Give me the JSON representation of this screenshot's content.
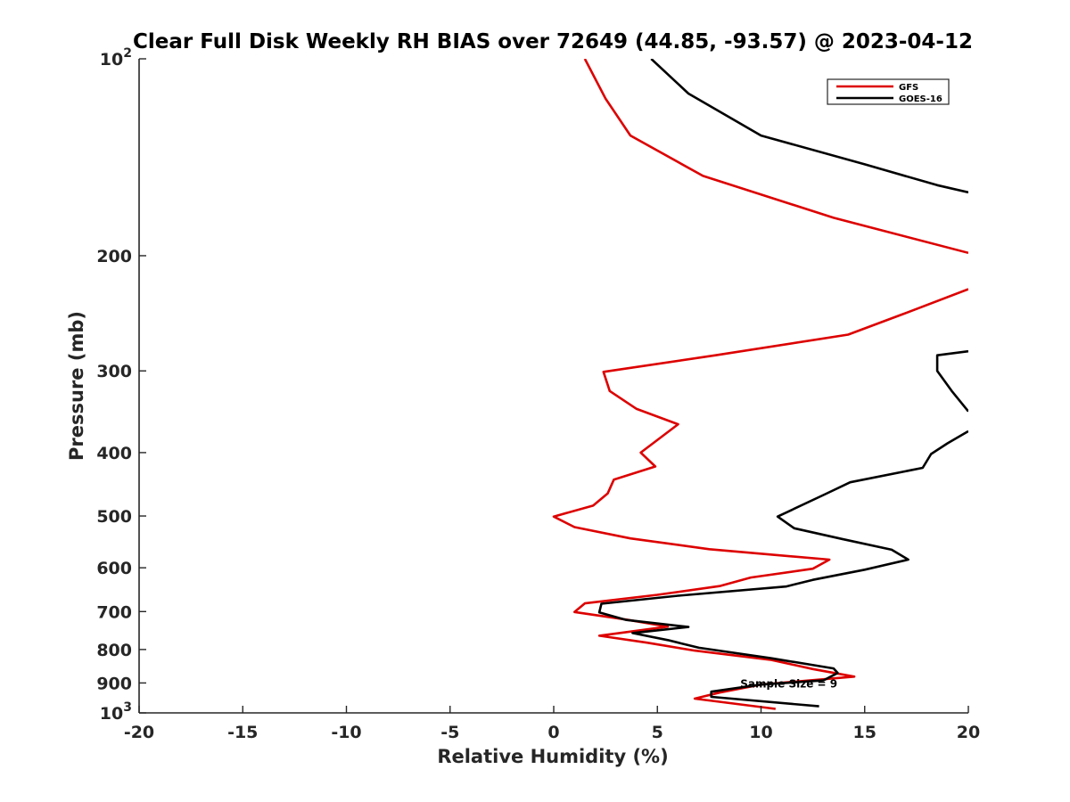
{
  "chart_data": {
    "type": "line",
    "title": "Clear Full Disk Weekly RH BIAS over 72649 (44.85, -93.57) @ 2023-04-12",
    "xlabel": "Relative Humidity (%)",
    "ylabel": "Pressure (mb)",
    "xlim": [
      -20,
      20
    ],
    "ylim": [
      100,
      1000
    ],
    "yscale": "log",
    "y_reversed": true,
    "grid": false,
    "legend_position": "top-right",
    "x_ticks": [
      "-20",
      "-15",
      "-10",
      "-5",
      "0",
      "5",
      "10",
      "15",
      "20"
    ],
    "y_ticks": [
      {
        "value": 100,
        "base": "10",
        "exp": "2"
      },
      {
        "value": 200,
        "label": "200"
      },
      {
        "value": 300,
        "label": "300"
      },
      {
        "value": 400,
        "label": "400"
      },
      {
        "value": 500,
        "label": "500"
      },
      {
        "value": 600,
        "label": "600"
      },
      {
        "value": 700,
        "label": "700"
      },
      {
        "value": 800,
        "label": "800"
      },
      {
        "value": 900,
        "label": "900"
      },
      {
        "value": 1000,
        "base": "10",
        "exp": "3"
      }
    ],
    "annotation": {
      "text": "Sample Size = 9",
      "x": 13.3,
      "y": 900
    },
    "series": [
      {
        "name": "GFS",
        "color": "#dd0000",
        "points": [
          [
            1.5,
            100
          ],
          [
            2.5,
            115
          ],
          [
            3.7,
            131
          ],
          [
            7.2,
            151
          ],
          [
            13.5,
            175
          ],
          [
            20.0,
            198
          ],
          null,
          [
            20.0,
            225
          ],
          [
            16.8,
            246
          ],
          [
            14.2,
            264
          ],
          [
            7.8,
            284
          ],
          [
            2.4,
            301
          ],
          [
            2.7,
            322
          ],
          [
            4.0,
            343
          ],
          [
            6.0,
            362
          ],
          [
            4.2,
            400
          ],
          [
            4.9,
            420
          ],
          [
            2.9,
            440
          ],
          [
            2.6,
            462
          ],
          [
            1.9,
            482
          ],
          [
            0.0,
            501
          ],
          [
            1.0,
            520
          ],
          [
            3.7,
            541
          ],
          [
            7.5,
            562
          ],
          [
            13.3,
            583
          ],
          [
            12.5,
            602
          ],
          [
            9.5,
            621
          ],
          [
            8.0,
            640
          ],
          [
            5.0,
            660
          ],
          [
            1.5,
            680
          ],
          [
            1.0,
            701
          ],
          [
            3.5,
            720
          ],
          [
            5.5,
            738
          ],
          [
            2.2,
            762
          ],
          [
            4.5,
            781
          ],
          [
            6.8,
            803
          ],
          [
            10.5,
            830
          ],
          [
            12.5,
            857
          ],
          [
            14.5,
            880
          ],
          [
            10.0,
            905
          ],
          [
            8.0,
            931
          ],
          [
            6.8,
            951
          ],
          [
            10.7,
            986
          ]
        ]
      },
      {
        "name": "GOES-16",
        "color": "#000000",
        "points": [
          [
            4.7,
            100
          ],
          [
            6.5,
            113
          ],
          [
            10.0,
            131
          ],
          [
            15.0,
            145
          ],
          [
            18.5,
            156
          ],
          [
            20.0,
            160
          ],
          null,
          [
            20.0,
            280
          ],
          [
            18.5,
            284
          ],
          [
            18.5,
            300
          ],
          [
            19.2,
            322
          ],
          [
            20.0,
            346
          ],
          null,
          [
            20.0,
            371
          ],
          [
            19.0,
            387
          ],
          [
            18.2,
            402
          ],
          [
            17.8,
            422
          ],
          [
            14.3,
            444
          ],
          [
            13.1,
            463
          ],
          [
            10.8,
            501
          ],
          [
            11.6,
            522
          ],
          [
            13.9,
            542
          ],
          [
            16.3,
            563
          ],
          [
            17.1,
            583
          ],
          [
            15.0,
            604
          ],
          [
            12.5,
            626
          ],
          [
            11.2,
            641
          ],
          [
            6.0,
            662
          ],
          [
            2.3,
            681
          ],
          [
            2.2,
            702
          ],
          [
            3.5,
            721
          ],
          [
            6.5,
            739
          ],
          [
            3.8,
            755
          ],
          [
            5.5,
            774
          ],
          [
            7.0,
            795
          ],
          [
            10.5,
            825
          ],
          [
            13.5,
            855
          ],
          [
            13.7,
            869
          ],
          [
            13.0,
            892
          ],
          [
            10.0,
            905
          ],
          [
            7.6,
            928
          ],
          [
            7.6,
            945
          ],
          [
            12.8,
            977
          ]
        ]
      }
    ]
  }
}
